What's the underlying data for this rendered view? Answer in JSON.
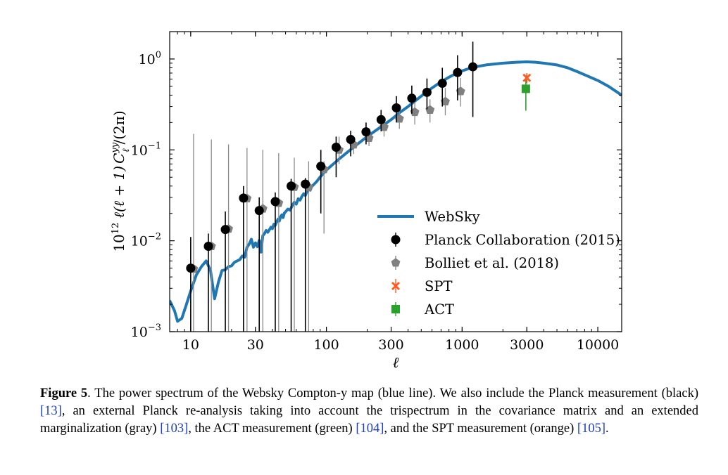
{
  "chart_data": {
    "type": "line",
    "xlabel": "ℓ",
    "ylabel_parts": {
      "a": "10",
      "a_sup": "12",
      "b": " ℓ(ℓ + 1)",
      "c": "C",
      "c_sup": "yy",
      "c_sub": "ℓ",
      "d": "/(2π)"
    },
    "x_scale": "log",
    "y_scale": "log",
    "xlim": [
      7,
      15000
    ],
    "ylim": [
      0.001,
      2.0
    ],
    "x_ticks": [
      10,
      30,
      100,
      300,
      1000,
      3000,
      10000
    ],
    "x_tick_labels": [
      "10",
      "30",
      "100",
      "300",
      "1000",
      "3000",
      "10000"
    ],
    "y_ticks": [
      0.001,
      0.01,
      0.1,
      1
    ],
    "y_tick_labels": [
      {
        "base": "10",
        "exp": "−3"
      },
      {
        "base": "10",
        "exp": "−2"
      },
      {
        "base": "10",
        "exp": "−1"
      },
      {
        "base": "10",
        "exp": "0"
      }
    ],
    "grid": false,
    "legend_position": "lower-right",
    "series": [
      {
        "name": "WebSky",
        "kind": "line",
        "color": "#1f77b4",
        "x": [
          7,
          7.6,
          8,
          8.6,
          9.2,
          10,
          11,
          12,
          13,
          14,
          15,
          16,
          17,
          18,
          19,
          20,
          21,
          22,
          23,
          24,
          25,
          26,
          27,
          28,
          29,
          30,
          31,
          32,
          33,
          34,
          35,
          36,
          37,
          38,
          39,
          40,
          41,
          42,
          43,
          44,
          45,
          46,
          47,
          48,
          49,
          50,
          52,
          54,
          56,
          58,
          60,
          62,
          64,
          66,
          68,
          70,
          72,
          74,
          76,
          78,
          80,
          85,
          90,
          95,
          100,
          110,
          120,
          130,
          140,
          150,
          160,
          170,
          180,
          190,
          200,
          220,
          240,
          260,
          280,
          300,
          350,
          400,
          450,
          500,
          600,
          700,
          800,
          900,
          1000,
          1200,
          1500,
          2000,
          2500,
          3000,
          3500,
          4000,
          5000,
          6000,
          7000,
          8000,
          10000,
          12000,
          15000
        ],
        "y": [
          0.0022,
          0.0017,
          0.0013,
          0.0014,
          0.0019,
          0.0028,
          0.0042,
          0.0052,
          0.006,
          0.0047,
          0.0023,
          0.0035,
          0.0047,
          0.0048,
          0.0052,
          0.0053,
          0.0058,
          0.006,
          0.0062,
          0.0068,
          0.0066,
          0.0085,
          0.0092,
          0.0104,
          0.0085,
          0.0095,
          0.0086,
          0.0101,
          0.0075,
          0.0114,
          0.012,
          0.013,
          0.0124,
          0.0132,
          0.0141,
          0.0136,
          0.0152,
          0.0148,
          0.0161,
          0.0173,
          0.0165,
          0.0184,
          0.0193,
          0.018,
          0.0202,
          0.0208,
          0.0223,
          0.0217,
          0.0244,
          0.0265,
          0.0253,
          0.029,
          0.028,
          0.0308,
          0.0329,
          0.0315,
          0.035,
          0.0372,
          0.036,
          0.0395,
          0.041,
          0.045,
          0.0503,
          0.055,
          0.06,
          0.068,
          0.076,
          0.084,
          0.092,
          0.1,
          0.108,
          0.116,
          0.124,
          0.132,
          0.14,
          0.155,
          0.17,
          0.185,
          0.2,
          0.215,
          0.26,
          0.3,
          0.345,
          0.39,
          0.48,
          0.56,
          0.63,
          0.69,
          0.74,
          0.81,
          0.86,
          0.9,
          0.92,
          0.93,
          0.92,
          0.9,
          0.86,
          0.8,
          0.73,
          0.67,
          0.58,
          0.5,
          0.4
        ]
      },
      {
        "name": "Planck Collaboration (2015)",
        "kind": "errorbar",
        "color": "#000000",
        "marker": "circle",
        "x": [
          10,
          13.5,
          18,
          24.5,
          32,
          42,
          55,
          70,
          91,
          118,
          151,
          196,
          253,
          328,
          426,
          551,
          715,
          926,
          1200
        ],
        "y": [
          0.005,
          0.0087,
          0.0133,
          0.0295,
          0.0215,
          0.027,
          0.04,
          0.042,
          0.066,
          0.107,
          0.13,
          0.158,
          0.215,
          0.29,
          0.37,
          0.43,
          0.54,
          0.71,
          0.82
        ],
        "y_low": [
          0.001,
          0.001,
          0.001,
          0.001,
          0.001,
          0.001,
          0.001,
          0.001,
          0.02,
          0.05,
          0.085,
          0.115,
          0.16,
          0.2,
          0.25,
          0.28,
          0.3,
          0.35,
          0.23
        ],
        "y_high": [
          0.011,
          0.012,
          0.021,
          0.04,
          0.03,
          0.034,
          0.048,
          0.049,
          0.1,
          0.14,
          0.162,
          0.2,
          0.275,
          0.39,
          0.51,
          0.61,
          0.8,
          1.1,
          1.55
        ]
      },
      {
        "name": "Bolliet et al. (2018)",
        "kind": "errorbar",
        "color": "#808080",
        "marker": "pentagon",
        "x": [
          10.5,
          14.2,
          19,
          26,
          34,
          44.5,
          58,
          74,
          96,
          124,
          159,
          206,
          266,
          345,
          448,
          580,
          752,
          975
        ],
        "y": [
          0.0049,
          0.0087,
          0.0135,
          0.0292,
          0.0225,
          0.026,
          0.039,
          0.039,
          0.061,
          0.1,
          0.114,
          0.135,
          0.178,
          0.22,
          0.26,
          0.275,
          0.34,
          0.44
        ],
        "y_low": [
          0.001,
          0.001,
          0.001,
          0.001,
          0.001,
          0.001,
          0.001,
          0.001,
          0.012,
          0.07,
          0.09,
          0.11,
          0.14,
          0.17,
          0.19,
          0.2,
          0.24,
          0.3
        ],
        "y_high": [
          0.15,
          0.13,
          0.115,
          0.105,
          0.1,
          0.092,
          0.082,
          0.075,
          0.075,
          0.14,
          0.14,
          0.16,
          0.215,
          0.28,
          0.335,
          0.36,
          0.48,
          0.62
        ]
      },
      {
        "name": "SPT",
        "kind": "errorbar",
        "color": "#ff5a1f",
        "marker": "x",
        "x": [
          3000
        ],
        "y": [
          0.62
        ],
        "y_low": [
          0.54
        ],
        "y_high": [
          0.7
        ]
      },
      {
        "name": "ACT",
        "kind": "errorbar",
        "color": "#2ca02c",
        "marker": "square",
        "x": [
          2950
        ],
        "y": [
          0.47
        ],
        "y_low": [
          0.27
        ],
        "y_high": [
          0.66
        ]
      }
    ]
  },
  "caption": {
    "label": "Figure 5",
    "t1": ". The power spectrum of the Websky Compton-y map (blue line). We also include the Planck measurement (black) ",
    "r1": "[13]",
    "t2": ", an external Planck re-analysis taking into account the trispectrum in the covariance matrix and an extended marginalization (gray) ",
    "r2": "[103]",
    "t3": ", the ACT measurement (green) ",
    "r3": "[104]",
    "t4": ", and the SPT measurement (orange) ",
    "r4": "[105]",
    "t5": "."
  }
}
